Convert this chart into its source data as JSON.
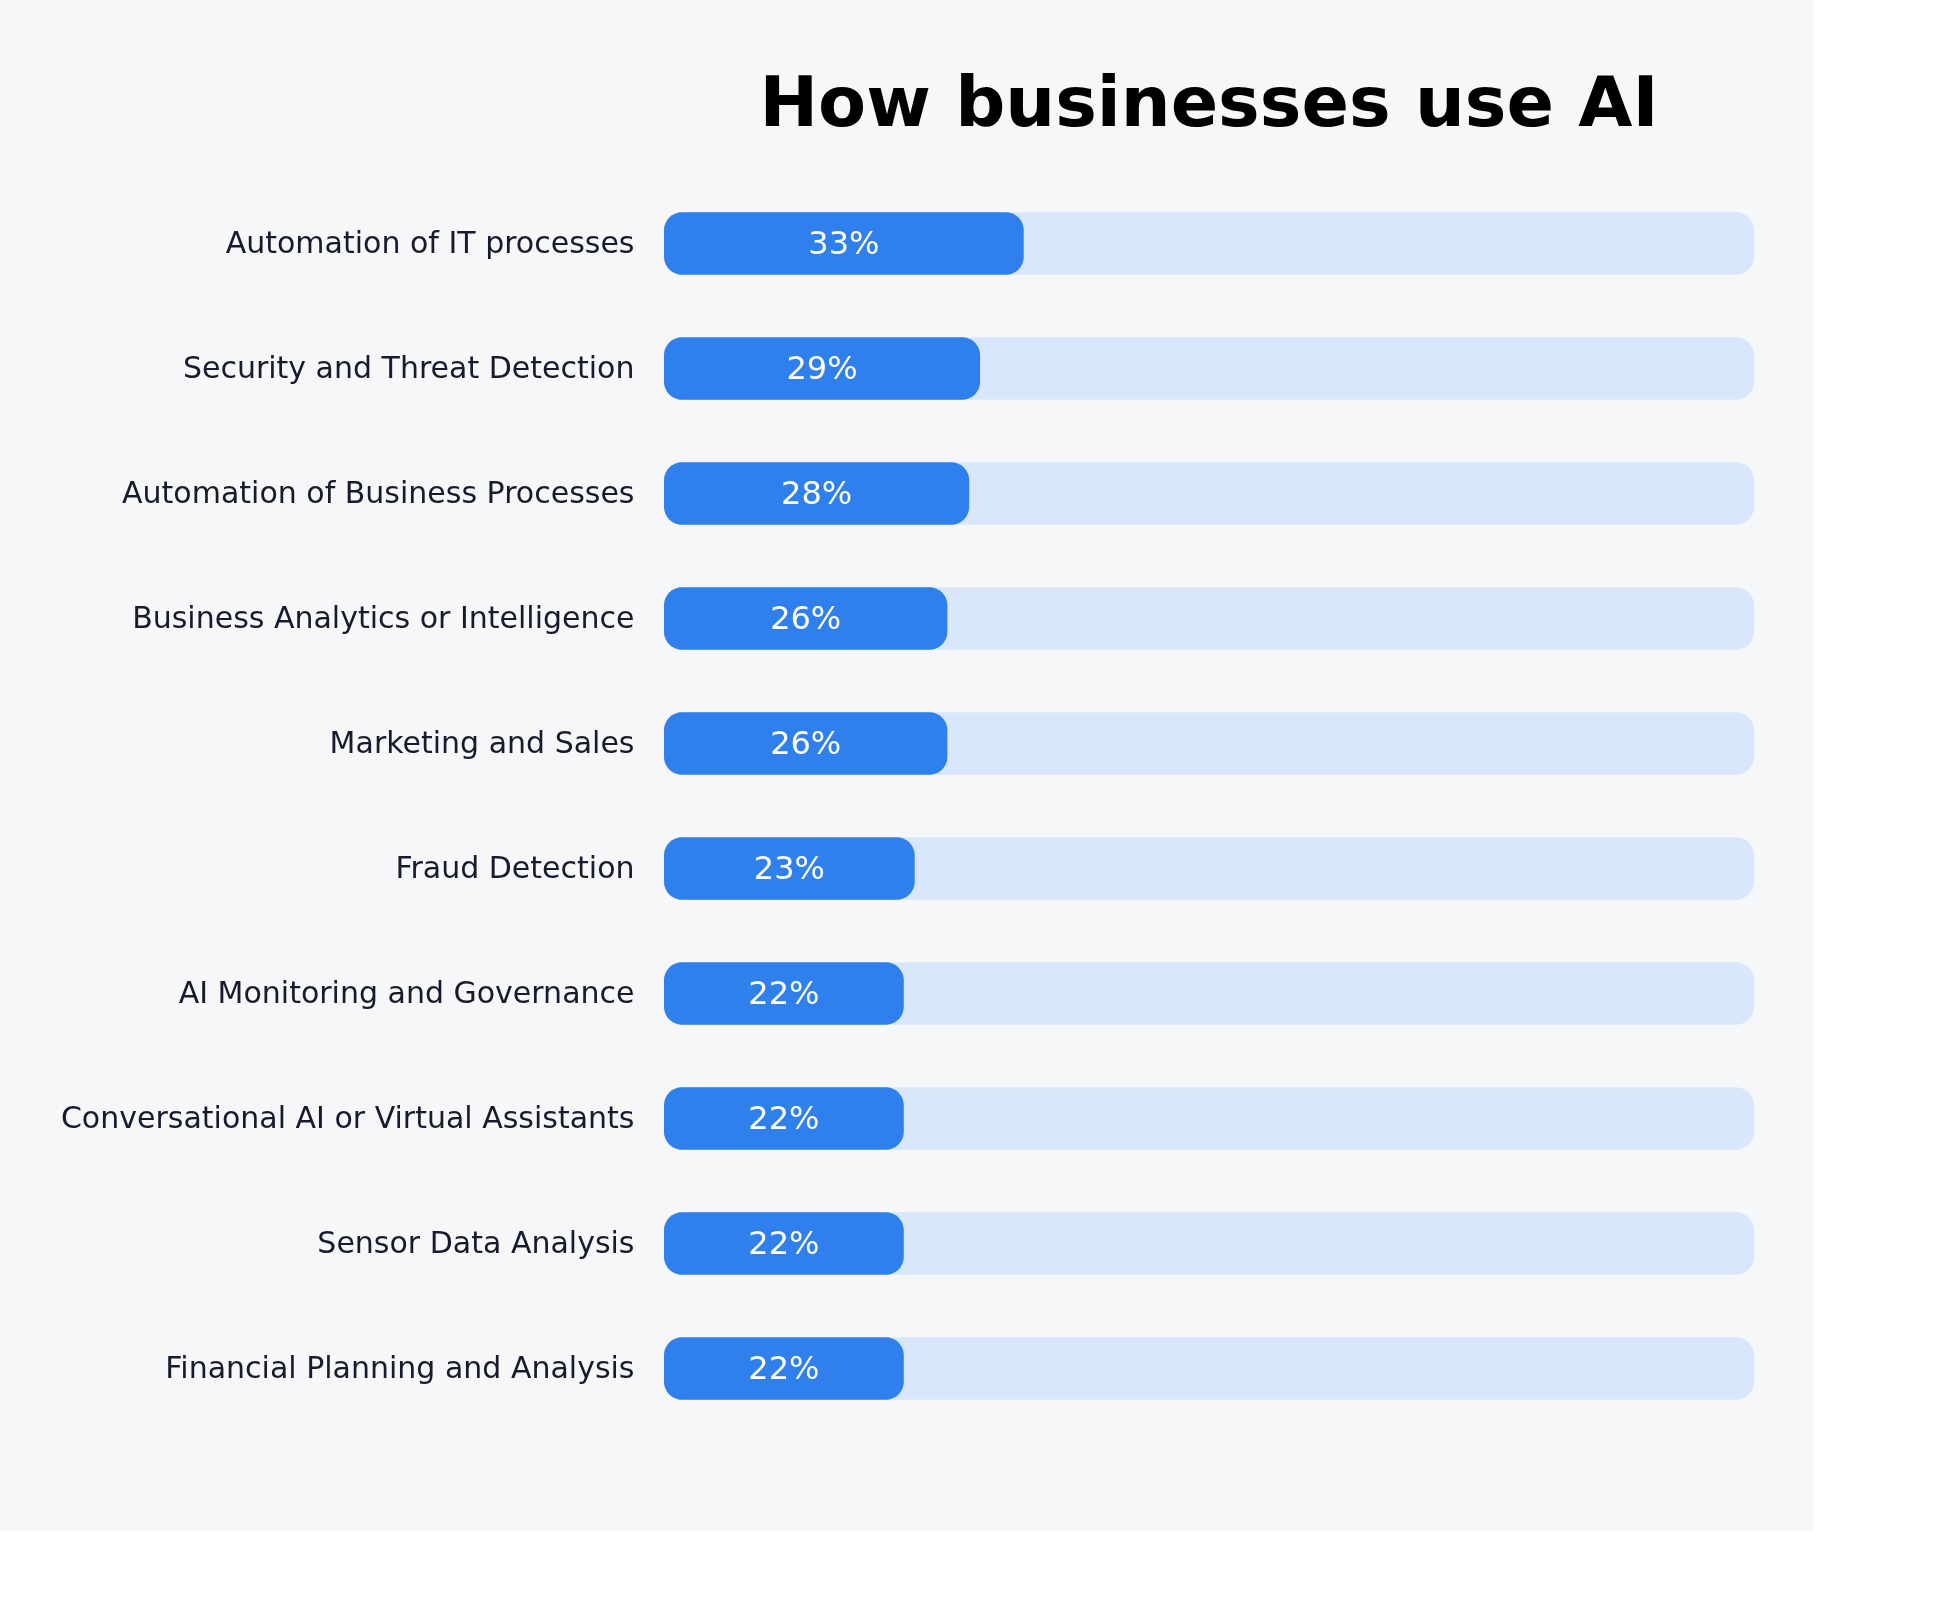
{
  "chart_data": {
    "type": "bar",
    "orientation": "horizontal",
    "title": "How businesses use AI",
    "categories": [
      "Automation of IT processes",
      "Security and Threat Detection",
      "Automation of Business Processes",
      "Business Analytics or Intelligence",
      "Marketing and Sales",
      "Fraud Detection",
      "AI Monitoring and Governance",
      "Conversational AI or Virtual Assistants",
      "Sensor Data Analysis",
      "Financial Planning and Analysis"
    ],
    "values": [
      33,
      29,
      28,
      26,
      26,
      23,
      22,
      22,
      22,
      22
    ],
    "value_labels": [
      "33%",
      "29%",
      "28%",
      "26%",
      "26%",
      "23%",
      "22%",
      "22%",
      "22%",
      "22%"
    ],
    "color": "#2f80ed",
    "xlim": [
      0,
      100
    ],
    "tick_labels": "y",
    "grid": false
  }
}
